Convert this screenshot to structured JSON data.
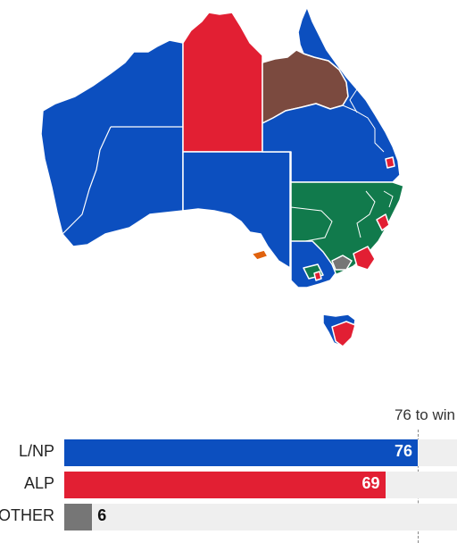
{
  "colors": {
    "lnp": "#0c4fbf",
    "alp": "#e21f33",
    "other": "#767676",
    "katter": "#7b4a3f",
    "nationals_green": "#117a4c",
    "centre_alliance": "#e0620e",
    "boundary": "#ffffff"
  },
  "map_regions": [
    {
      "name": "western-australia",
      "party": "lnp"
    },
    {
      "name": "northern-territory",
      "party": "alp"
    },
    {
      "name": "kennedy-queensland",
      "party": "katter"
    },
    {
      "name": "queensland-coast",
      "party": "lnp"
    },
    {
      "name": "new-south-wales-west",
      "party": "nationals_green"
    },
    {
      "name": "victoria",
      "party": "lnp"
    },
    {
      "name": "south-australia",
      "party": "lnp"
    },
    {
      "name": "tasmania",
      "party": "lnp"
    },
    {
      "name": "kangaroo-island",
      "party": "centre_alliance"
    }
  ],
  "majority": {
    "label": "76 to win",
    "value": 76
  },
  "seat_results": [
    {
      "key": "lnp",
      "label": "L/NP",
      "value": 76,
      "color": "#0c4fbf"
    },
    {
      "key": "alp",
      "label": "ALP",
      "value": 69,
      "color": "#e21f33"
    },
    {
      "key": "other",
      "label": "OTHER",
      "value": 6,
      "color": "#767676"
    }
  ]
}
